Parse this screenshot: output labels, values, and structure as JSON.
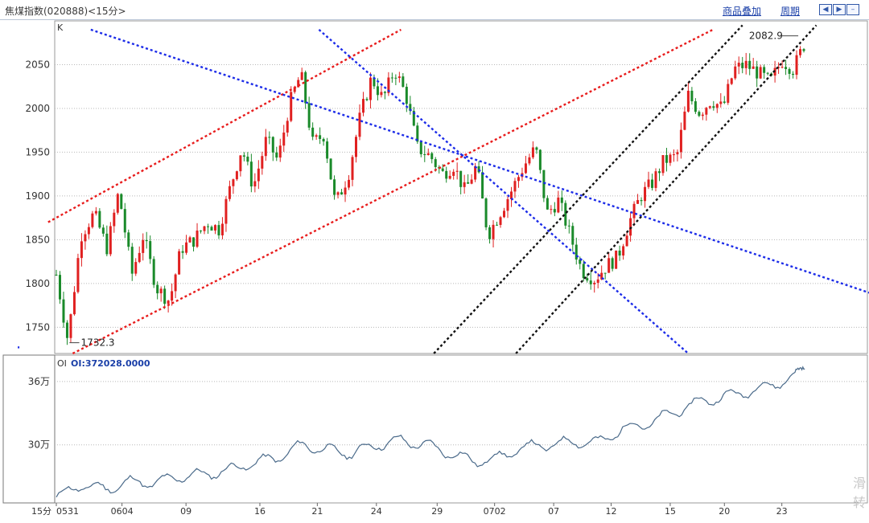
{
  "header": {
    "title": "焦煤指数(020888)<15分>",
    "overlay_link": "商品叠加",
    "period_link": "周期"
  },
  "colors": {
    "up": "#e02020",
    "down": "#1a8a2a",
    "oi_line": "#4a6a8a",
    "trend_red": "#e81c1c",
    "trend_blue": "#1c2ce8",
    "trend_black": "#111111",
    "grid": "#b8b8b8",
    "axis_text": "#333333"
  },
  "chart_data": [
    {
      "type": "candlestick",
      "panel_label": "K",
      "y_ticks": [
        2050,
        2000,
        1950,
        1900,
        1850,
        1800,
        1750
      ],
      "ylim": [
        1720,
        2100
      ],
      "x_labels": [
        "0531",
        "0604",
        "09",
        "16",
        "21",
        "24",
        "29",
        "0702",
        "07",
        "12",
        "15",
        "20",
        "23"
      ],
      "annotations": [
        {
          "text": "2082.9",
          "value": 2082.9
        },
        {
          "text": "1732.3",
          "value": 1732.3
        }
      ],
      "approx_close_path": [
        {
          "x": 0,
          "y": 1810
        },
        {
          "x": 0.7,
          "y": 1735
        },
        {
          "x": 1.5,
          "y": 1855
        },
        {
          "x": 2.3,
          "y": 1880
        },
        {
          "x": 3.1,
          "y": 1840
        },
        {
          "x": 3.8,
          "y": 1905
        },
        {
          "x": 4.6,
          "y": 1810
        },
        {
          "x": 5.3,
          "y": 1855
        },
        {
          "x": 6.1,
          "y": 1795
        },
        {
          "x": 6.9,
          "y": 1780
        },
        {
          "x": 7.6,
          "y": 1840
        },
        {
          "x": 8.4,
          "y": 1850
        },
        {
          "x": 9.2,
          "y": 1870
        },
        {
          "x": 9.9,
          "y": 1862
        },
        {
          "x": 10.6,
          "y": 1910
        },
        {
          "x": 11.3,
          "y": 1955
        },
        {
          "x": 12.0,
          "y": 1910
        },
        {
          "x": 12.8,
          "y": 1965
        },
        {
          "x": 13.5,
          "y": 1940
        },
        {
          "x": 14.2,
          "y": 2005
        },
        {
          "x": 14.9,
          "y": 2040
        },
        {
          "x": 15.6,
          "y": 1960
        },
        {
          "x": 16.3,
          "y": 1970
        },
        {
          "x": 17.0,
          "y": 1890
        },
        {
          "x": 17.8,
          "y": 1925
        },
        {
          "x": 18.5,
          "y": 1990
        },
        {
          "x": 19.2,
          "y": 2035
        },
        {
          "x": 19.9,
          "y": 2010
        },
        {
          "x": 20.6,
          "y": 2045
        },
        {
          "x": 21.3,
          "y": 2015
        },
        {
          "x": 22.0,
          "y": 1955
        },
        {
          "x": 22.8,
          "y": 1945
        },
        {
          "x": 23.5,
          "y": 1925
        },
        {
          "x": 24.2,
          "y": 1935
        },
        {
          "x": 24.9,
          "y": 1905
        },
        {
          "x": 25.6,
          "y": 1935
        },
        {
          "x": 26.3,
          "y": 1855
        },
        {
          "x": 27.0,
          "y": 1880
        },
        {
          "x": 27.7,
          "y": 1905
        },
        {
          "x": 28.5,
          "y": 1935
        },
        {
          "x": 29.2,
          "y": 1955
        },
        {
          "x": 29.9,
          "y": 1880
        },
        {
          "x": 30.6,
          "y": 1895
        },
        {
          "x": 31.3,
          "y": 1855
        },
        {
          "x": 32.0,
          "y": 1815
        },
        {
          "x": 32.8,
          "y": 1805
        },
        {
          "x": 33.5,
          "y": 1820
        },
        {
          "x": 34.2,
          "y": 1830
        },
        {
          "x": 34.9,
          "y": 1870
        },
        {
          "x": 35.6,
          "y": 1900
        },
        {
          "x": 36.3,
          "y": 1915
        },
        {
          "x": 37.0,
          "y": 1940
        },
        {
          "x": 37.8,
          "y": 1945
        },
        {
          "x": 38.5,
          "y": 2015
        },
        {
          "x": 39.2,
          "y": 1995
        },
        {
          "x": 39.9,
          "y": 2010
        },
        {
          "x": 40.6,
          "y": 2000
        },
        {
          "x": 41.3,
          "y": 2045
        },
        {
          "x": 42.0,
          "y": 2050
        },
        {
          "x": 42.8,
          "y": 2040
        },
        {
          "x": 43.5,
          "y": 2030
        },
        {
          "x": 44.2,
          "y": 2055
        },
        {
          "x": 44.9,
          "y": 2045
        },
        {
          "x": 45.6,
          "y": 2075
        }
      ],
      "trendlines": [
        {
          "color": "red",
          "from": {
            "x": -0.5,
            "y": 1870
          },
          "to": {
            "x": 21.0,
            "y": 2090
          }
        },
        {
          "color": "red",
          "from": {
            "x": 1.0,
            "y": 1720
          },
          "to": {
            "x": 40.0,
            "y": 2090
          }
        },
        {
          "color": "blue",
          "from": {
            "x": 2.1,
            "y": 2090
          },
          "to": {
            "x": 51.8,
            "y": 1775
          }
        },
        {
          "color": "blue",
          "from": {
            "x": 16.0,
            "y": 2090
          },
          "to": {
            "x": 38.5,
            "y": 1720
          }
        },
        {
          "color": "black",
          "from": {
            "x": 23.0,
            "y": 1720
          },
          "to": {
            "x": 41.8,
            "y": 2095
          }
        },
        {
          "color": "black",
          "from": {
            "x": 28.0,
            "y": 1720
          },
          "to": {
            "x": 46.3,
            "y": 2095
          }
        },
        {
          "color": "blue",
          "from": {
            "x": -2.35,
            "y": 1727
          },
          "to": {
            "x": -2.25,
            "y": 1727
          }
        }
      ]
    },
    {
      "type": "line",
      "panel_label": "OI",
      "header_value": "OI:372028.0000",
      "y_ticks": [
        {
          "label": "36万",
          "value": 360000
        },
        {
          "label": "30万",
          "value": 300000
        }
      ],
      "ylim": [
        245000,
        385000
      ],
      "approx_path": [
        {
          "x": 0,
          "y": 250000
        },
        {
          "x": 1.5,
          "y": 262000
        },
        {
          "x": 3.0,
          "y": 258000
        },
        {
          "x": 4.5,
          "y": 265000
        },
        {
          "x": 6.0,
          "y": 264000
        },
        {
          "x": 7.5,
          "y": 270000
        },
        {
          "x": 9.0,
          "y": 272000
        },
        {
          "x": 10.5,
          "y": 276000
        },
        {
          "x": 12.0,
          "y": 283000
        },
        {
          "x": 13.5,
          "y": 288000
        },
        {
          "x": 15.0,
          "y": 300000
        },
        {
          "x": 16.5,
          "y": 295000
        },
        {
          "x": 18.0,
          "y": 292000
        },
        {
          "x": 19.5,
          "y": 300000
        },
        {
          "x": 21.0,
          "y": 304000
        },
        {
          "x": 22.5,
          "y": 300000
        },
        {
          "x": 24.0,
          "y": 292000
        },
        {
          "x": 25.5,
          "y": 284000
        },
        {
          "x": 27.0,
          "y": 288000
        },
        {
          "x": 28.5,
          "y": 298000
        },
        {
          "x": 30.0,
          "y": 300000
        },
        {
          "x": 31.5,
          "y": 303000
        },
        {
          "x": 33.0,
          "y": 302000
        },
        {
          "x": 34.5,
          "y": 315000
        },
        {
          "x": 36.0,
          "y": 320000
        },
        {
          "x": 37.5,
          "y": 330000
        },
        {
          "x": 39.0,
          "y": 340000
        },
        {
          "x": 40.5,
          "y": 345000
        },
        {
          "x": 42.0,
          "y": 350000
        },
        {
          "x": 43.5,
          "y": 356000
        },
        {
          "x": 45.0,
          "y": 365000
        },
        {
          "x": 45.6,
          "y": 372000
        }
      ]
    }
  ],
  "footer": {
    "period_label": "15分"
  },
  "watermark": {
    "chars": [
      "滑",
      "转"
    ]
  }
}
